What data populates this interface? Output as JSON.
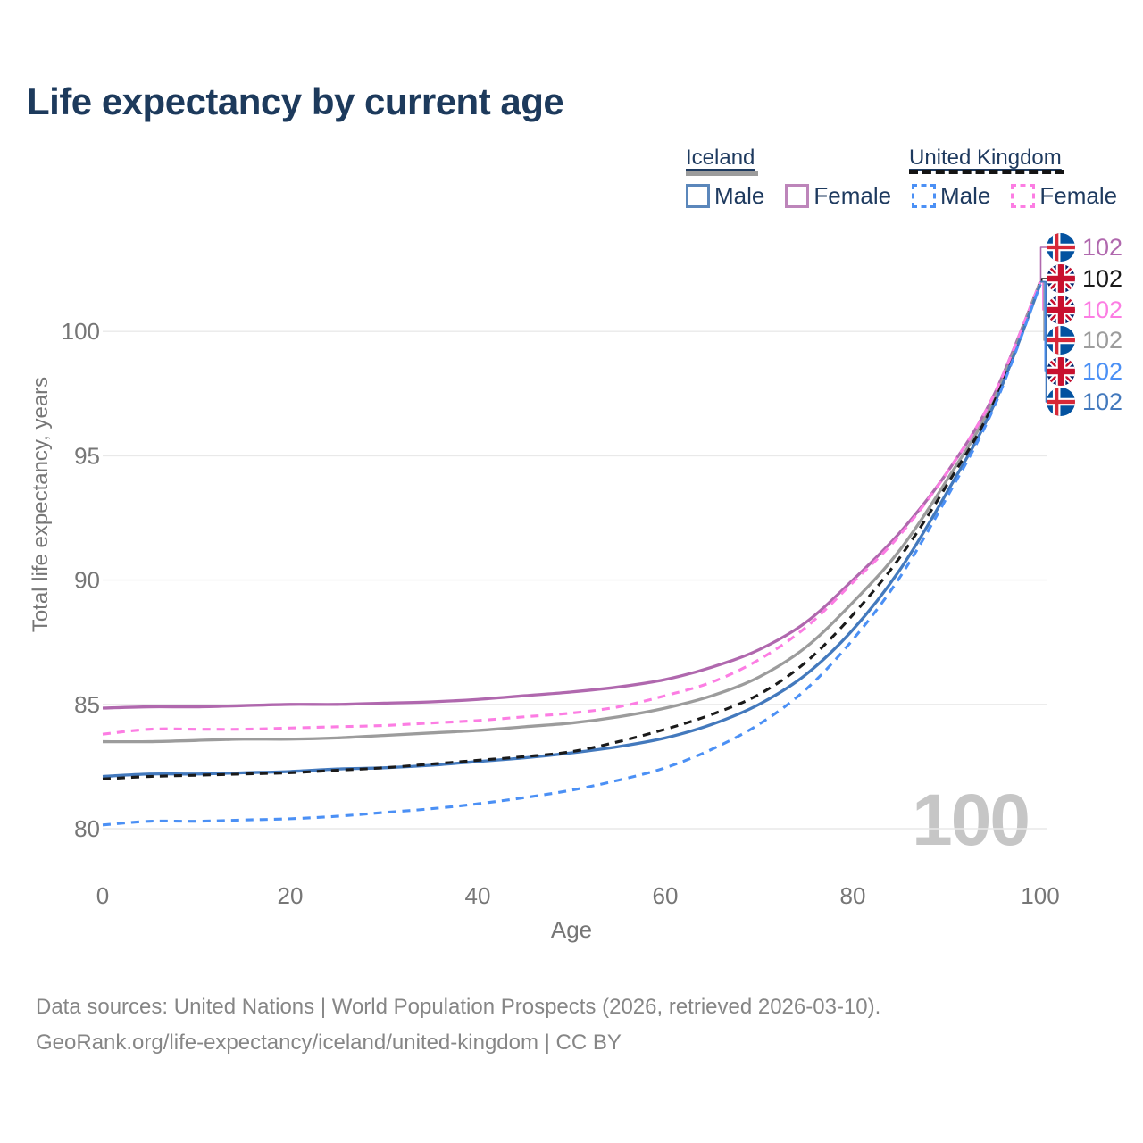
{
  "title": "Life expectancy by current age",
  "legend": {
    "iceland": {
      "title": "Iceland",
      "male": "Male",
      "female": "Female"
    },
    "uk": {
      "title": "United Kingdom",
      "male": "Male",
      "female": "Female"
    }
  },
  "watermark": "100",
  "footer": {
    "line1": "Data sources: United Nations | World Population Prospects (2026, retrieved 2026-03-10).",
    "line2": "GeoRank.org/life-expectancy/iceland/united-kingdom | CC BY"
  },
  "colors": {
    "title_navy": "#1d3a5c",
    "axis_gray": "#767676",
    "grid": "#e9e9e9",
    "watermark": "#c6c6c6",
    "iceland_male": "#4379bd",
    "iceland_female": "#b068ae",
    "iceland_all": "#9c9c9c",
    "uk_male": "#4b90f5",
    "uk_female": "#fc7de3",
    "uk_all": "#1a1a1a"
  },
  "chart_data": {
    "type": "line",
    "title": "Life expectancy by current age",
    "xlabel": "Age",
    "ylabel": "Total life expectancy, years",
    "x_ticks": [
      0,
      20,
      40,
      60,
      80,
      100
    ],
    "y_ticks": [
      80,
      85,
      90,
      95,
      100
    ],
    "xlim": [
      0,
      100
    ],
    "ylim": [
      79.5,
      102.5
    ],
    "grid": "horizontal",
    "legend_position": "top-right",
    "x": [
      0,
      5,
      10,
      15,
      20,
      25,
      30,
      35,
      40,
      45,
      50,
      55,
      60,
      65,
      70,
      75,
      80,
      85,
      90,
      95,
      100
    ],
    "series": [
      {
        "name": "Iceland Female",
        "country": "Iceland",
        "group": "Female",
        "style": "solid",
        "color": "#b068ae",
        "flag": "iceland",
        "end_label": "102",
        "values": [
          84.85,
          84.9,
          84.9,
          84.95,
          85.0,
          85.0,
          85.05,
          85.1,
          85.2,
          85.35,
          85.5,
          85.7,
          86.0,
          86.5,
          87.2,
          88.3,
          90.0,
          91.9,
          94.3,
          97.4,
          102.0
        ]
      },
      {
        "name": "United Kingdom Both sexes",
        "country": "United Kingdom",
        "group": "All",
        "style": "dashed",
        "color": "#1a1a1a",
        "flag": "uk",
        "end_label": "102",
        "values": [
          82.0,
          82.1,
          82.15,
          82.2,
          82.25,
          82.35,
          82.45,
          82.6,
          82.75,
          82.9,
          83.1,
          83.5,
          84.0,
          84.6,
          85.4,
          86.7,
          88.6,
          90.9,
          93.8,
          97.1,
          102.0
        ]
      },
      {
        "name": "United Kingdom Female",
        "country": "United Kingdom",
        "group": "Female",
        "style": "dashed",
        "color": "#fc7de3",
        "flag": "uk",
        "end_label": "102",
        "values": [
          83.8,
          84.0,
          84.0,
          84.0,
          84.05,
          84.1,
          84.15,
          84.25,
          84.35,
          84.5,
          84.65,
          84.9,
          85.35,
          85.9,
          86.8,
          88.1,
          89.9,
          91.8,
          94.3,
          97.4,
          102.0
        ]
      },
      {
        "name": "Iceland Both sexes",
        "country": "Iceland",
        "group": "All",
        "style": "solid",
        "color": "#9c9c9c",
        "flag": "iceland",
        "end_label": "102",
        "values": [
          83.5,
          83.5,
          83.55,
          83.6,
          83.6,
          83.65,
          83.75,
          83.85,
          83.95,
          84.1,
          84.25,
          84.5,
          84.85,
          85.35,
          86.1,
          87.3,
          89.1,
          91.2,
          94.0,
          97.2,
          102.0
        ]
      },
      {
        "name": "United Kingdom Male",
        "country": "United Kingdom",
        "group": "Male",
        "style": "dashed",
        "color": "#4b90f5",
        "flag": "uk",
        "end_label": "102",
        "values": [
          80.15,
          80.3,
          80.3,
          80.35,
          80.4,
          80.5,
          80.65,
          80.8,
          81.0,
          81.25,
          81.55,
          81.95,
          82.45,
          83.2,
          84.2,
          85.6,
          87.6,
          90.1,
          93.3,
          96.9,
          101.9
        ]
      },
      {
        "name": "Iceland Male",
        "country": "Iceland",
        "group": "Male",
        "style": "solid",
        "color": "#4379bd",
        "flag": "iceland",
        "end_label": "102",
        "values": [
          82.1,
          82.2,
          82.2,
          82.25,
          82.3,
          82.4,
          82.45,
          82.55,
          82.7,
          82.85,
          83.05,
          83.3,
          83.65,
          84.2,
          85.0,
          86.2,
          88.0,
          90.4,
          93.5,
          97.0,
          101.9
        ]
      }
    ]
  }
}
